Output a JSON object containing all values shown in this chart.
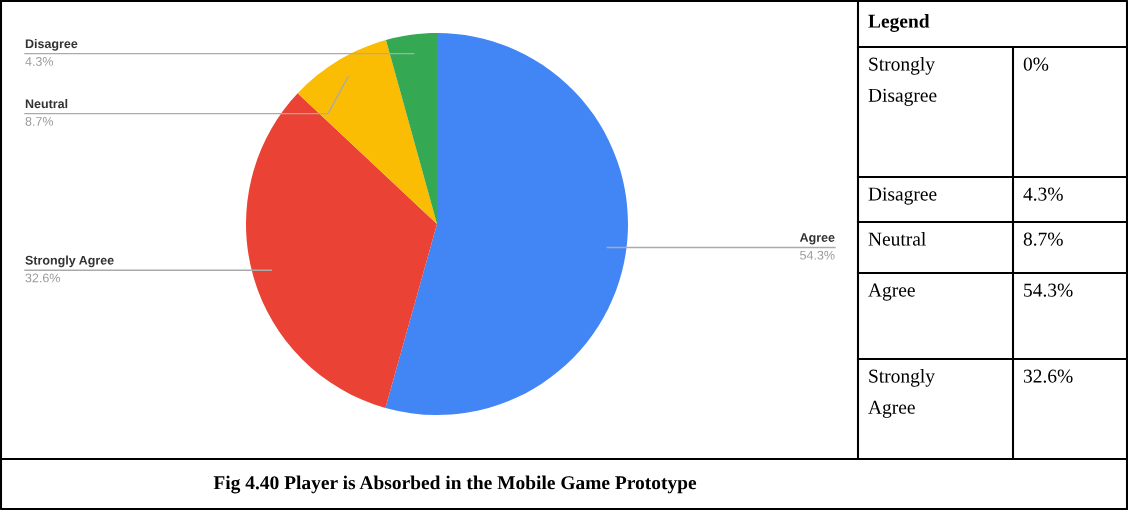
{
  "chart_data": [
    {
      "type": "pie",
      "title": "Fig 4.40 Player is Absorbed in the Mobile Game Prototype",
      "categories": [
        "Agree",
        "Strongly Agree",
        "Neutral",
        "Disagree"
      ],
      "values": [
        54.3,
        32.6,
        8.7,
        4.3
      ],
      "colors": [
        "#4285f4",
        "#ea4335",
        "#fbbc04",
        "#34a853"
      ],
      "value_labels": [
        "54.3%",
        "32.6%",
        "8.7%",
        "4.3%"
      ]
    },
    {
      "type": "other",
      "title": "Legend",
      "categories": [
        "Strongly Disagree",
        "Disagree",
        "Neutral",
        "Agree",
        "Strongly Agree"
      ],
      "values": [
        0,
        4.3,
        8.7,
        54.3,
        32.6
      ],
      "value_labels": [
        "0%",
        "4.3%",
        "8.7%",
        "54.3%",
        "32.6%"
      ]
    }
  ]
}
